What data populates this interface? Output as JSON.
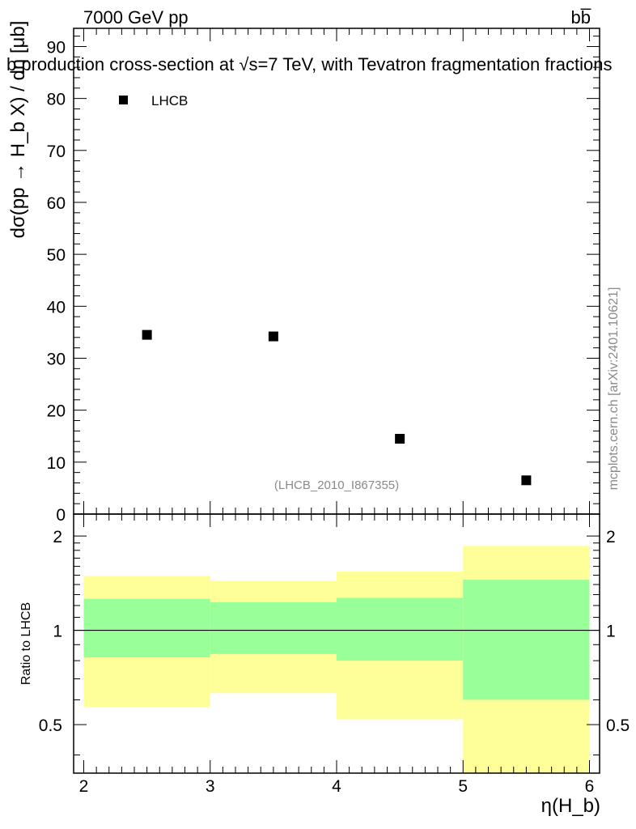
{
  "header": {
    "energy_label": "7000 GeV pp",
    "process_label": "bb̅"
  },
  "side_label": "mcplots.cern.ch [arXiv:2401.10621]",
  "chart_data": [
    {
      "type": "scatter",
      "title": "b production cross-section at √s=7 TeV, with Tevatron fragmentation fractions",
      "ylabel": "dσ(pp → H_b X) / dη [μb]",
      "xlim": [
        1.92,
        6.08
      ],
      "ylim": [
        0,
        93.5
      ],
      "y_ticks": [
        0,
        10,
        20,
        30,
        40,
        50,
        60,
        70,
        80,
        90
      ],
      "series": [
        {
          "name": "LHCB",
          "x": [
            2.5,
            3.5,
            4.5,
            5.5
          ],
          "values": [
            34.5,
            34.2,
            14.5,
            6.5
          ],
          "color": "#000000"
        }
      ],
      "legend": {
        "position": "top-left",
        "entries": [
          "LHCB"
        ]
      },
      "annotation": "(LHCB_2010_I867355)"
    },
    {
      "type": "area",
      "ylabel": "Ratio to LHCB",
      "xlabel": "η(H_b)",
      "xlim": [
        1.92,
        6.08
      ],
      "ylim": [
        0.35,
        2.35
      ],
      "y_scale": "log",
      "y_tick_labels": [
        "0.5",
        "1",
        "2"
      ],
      "x_tick_labels": [
        "2",
        "3",
        "4",
        "5",
        "6"
      ],
      "reference_line": 1,
      "bins": [
        {
          "x_lo": 2,
          "x_hi": 3,
          "stat_lo": 0.82,
          "stat_hi": 1.26,
          "total_lo": 0.57,
          "total_hi": 1.49
        },
        {
          "x_lo": 3,
          "x_hi": 4,
          "stat_lo": 0.84,
          "stat_hi": 1.23,
          "total_lo": 0.63,
          "total_hi": 1.44
        },
        {
          "x_lo": 4,
          "x_hi": 5,
          "stat_lo": 0.8,
          "stat_hi": 1.27,
          "total_lo": 0.52,
          "total_hi": 1.54
        },
        {
          "x_lo": 5,
          "x_hi": 6,
          "stat_lo": 0.6,
          "stat_hi": 1.45,
          "total_lo": 0.35,
          "total_hi": 1.86
        }
      ],
      "colors": {
        "stat_band": "#99ff99",
        "total_band": "#ffff99",
        "line": "#000000"
      }
    }
  ]
}
